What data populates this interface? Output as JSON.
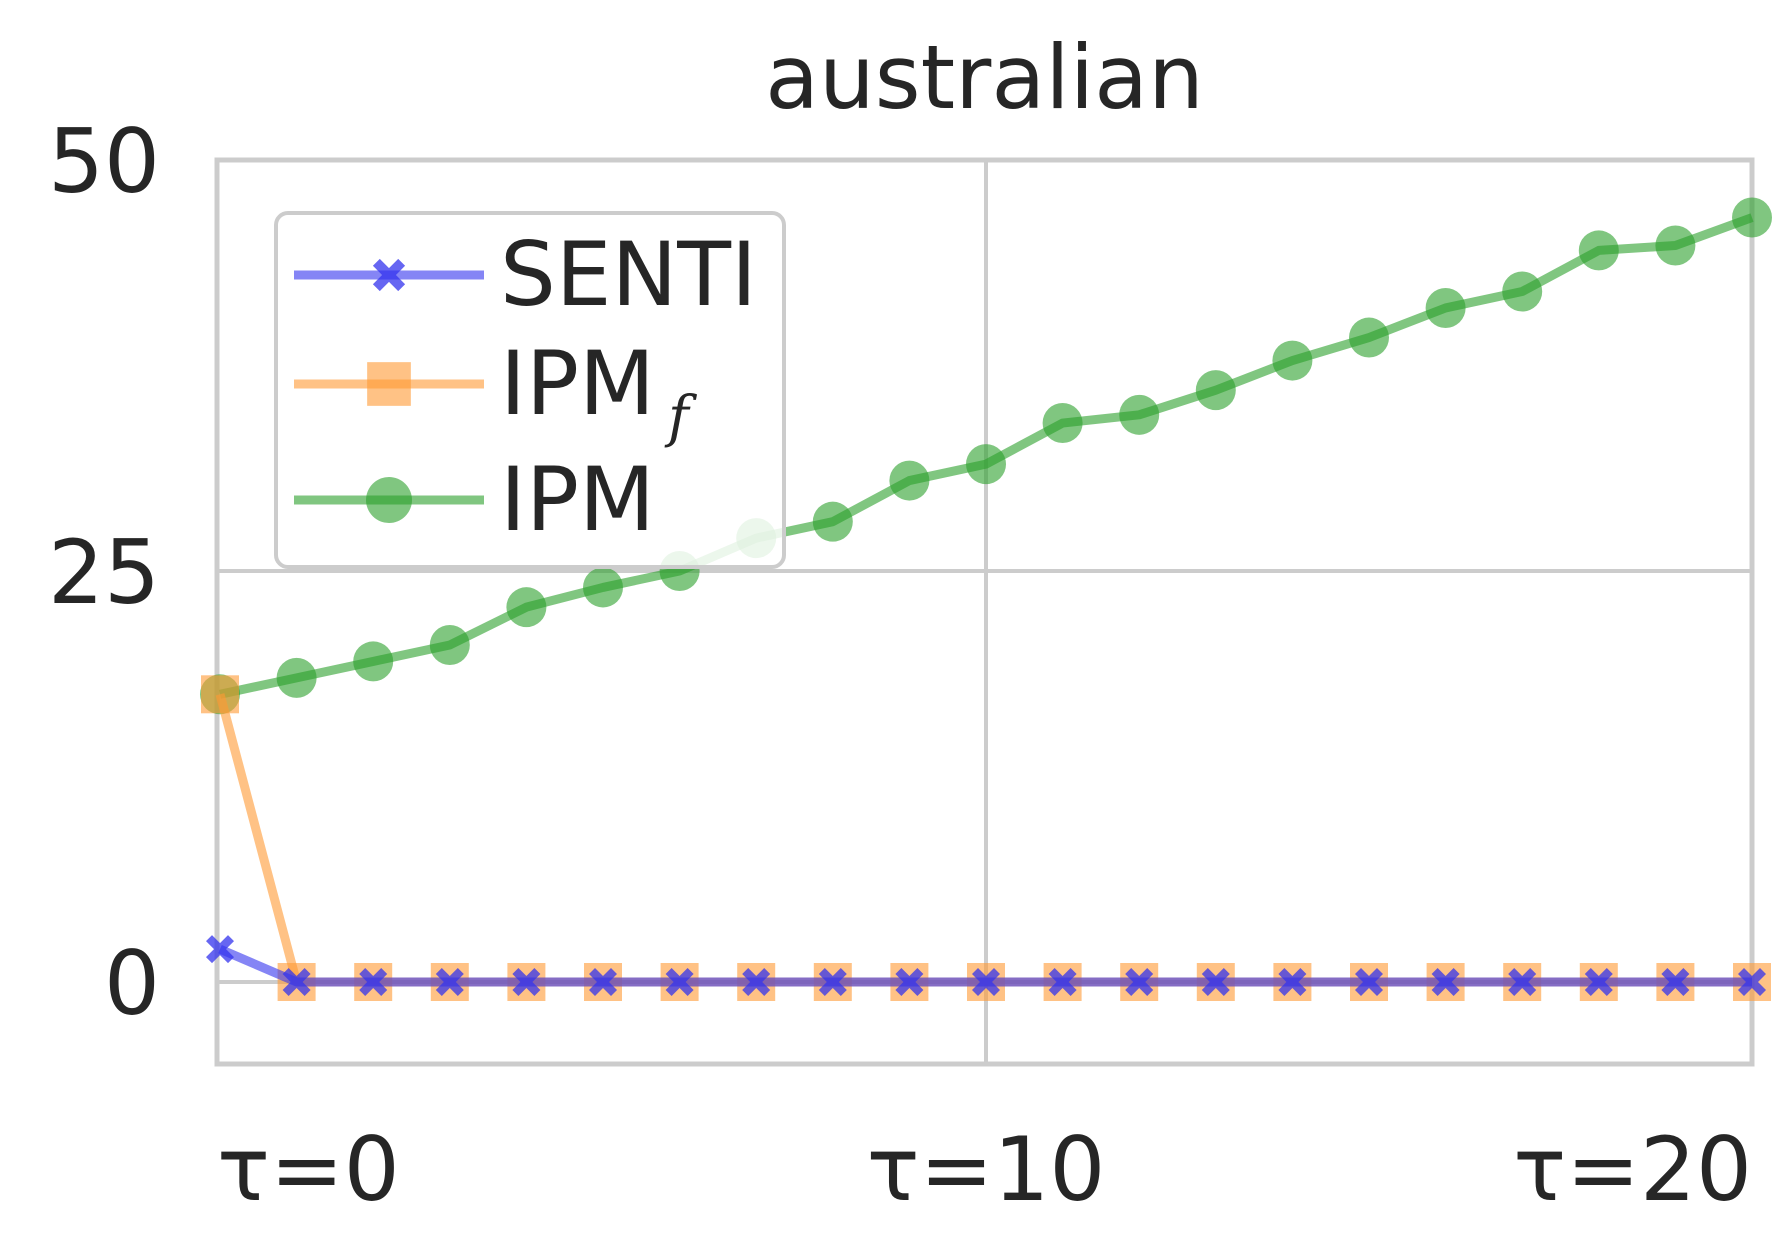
{
  "chart_data": {
    "type": "line",
    "title": "australian",
    "xlabel": "",
    "ylabel": "",
    "x_ticks": [
      {
        "value": 0,
        "label": "τ=0"
      },
      {
        "value": 10,
        "label": "τ=10"
      },
      {
        "value": 20,
        "label": "τ=20"
      }
    ],
    "y_ticks": [
      {
        "value": 0,
        "label": "0"
      },
      {
        "value": 25,
        "label": "25"
      },
      {
        "value": 50,
        "label": "50"
      }
    ],
    "xlim": [
      0,
      20
    ],
    "ylim": [
      -5,
      50
    ],
    "grid": true,
    "legend_placement": "upper-left",
    "x": [
      0,
      1,
      2,
      3,
      4,
      5,
      6,
      7,
      8,
      9,
      10,
      11,
      12,
      13,
      14,
      15,
      16,
      17,
      18,
      19,
      20
    ],
    "series": [
      {
        "name": "SENTI",
        "color": "#3333ee",
        "marker": "x",
        "values": [
          2,
          0,
          0,
          0,
          0,
          0,
          0,
          0,
          0,
          0,
          0,
          0,
          0,
          0,
          0,
          0,
          0,
          0,
          0,
          0,
          0
        ]
      },
      {
        "name": "IPM",
        "name_sub": "f",
        "color": "#ff9933",
        "marker": "square",
        "values": [
          17.5,
          0,
          0,
          0,
          0,
          0,
          0,
          0,
          0,
          0,
          0,
          0,
          0,
          0,
          0,
          0,
          0,
          0,
          0,
          0,
          0
        ]
      },
      {
        "name": "IPM",
        "color": "#2ca02c",
        "marker": "circle",
        "values": [
          17.5,
          18.5,
          19.5,
          20.5,
          22.8,
          24,
          25,
          27,
          28,
          30.5,
          31.5,
          34,
          34.5,
          36,
          37.8,
          39.2,
          41,
          42,
          44.5,
          44.8,
          46.5
        ]
      }
    ]
  }
}
